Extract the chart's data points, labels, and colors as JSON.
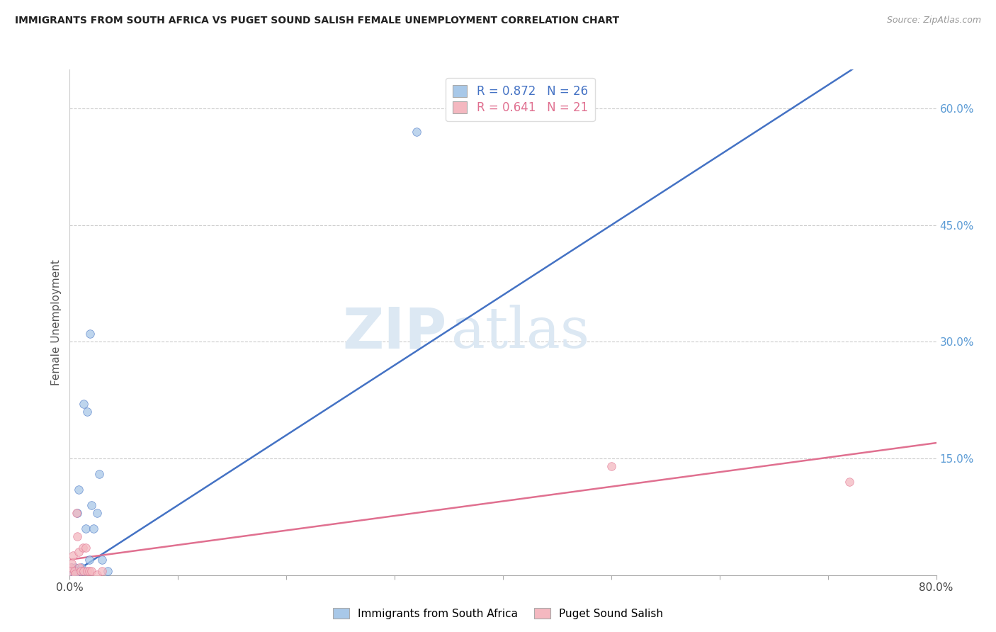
{
  "title": "IMMIGRANTS FROM SOUTH AFRICA VS PUGET SOUND SALISH FEMALE UNEMPLOYMENT CORRELATION CHART",
  "source": "Source: ZipAtlas.com",
  "ylabel": "Female Unemployment",
  "right_yticks": [
    "15.0%",
    "30.0%",
    "45.0%",
    "60.0%"
  ],
  "right_ytick_vals": [
    0.15,
    0.3,
    0.45,
    0.6
  ],
  "watermark_zip": "ZIP",
  "watermark_atlas": "atlas",
  "legend_label1": "Immigrants from South Africa",
  "legend_label2": "Puget Sound Salish",
  "r1": 0.872,
  "n1": 26,
  "r2": 0.641,
  "n2": 21,
  "color_blue": "#A8C8E8",
  "color_pink": "#F4B8C0",
  "line_color_blue": "#4472C4",
  "line_color_pink": "#E07090",
  "title_color": "#222222",
  "right_axis_color": "#5B9BD5",
  "xlim": [
    0,
    0.8
  ],
  "ylim": [
    0,
    0.65
  ],
  "blue_x": [
    0.0,
    0.001,
    0.002,
    0.003,
    0.004,
    0.005,
    0.005,
    0.006,
    0.007,
    0.008,
    0.009,
    0.01,
    0.011,
    0.012,
    0.013,
    0.015,
    0.016,
    0.018,
    0.019,
    0.02,
    0.022,
    0.025,
    0.027,
    0.03,
    0.035,
    0.32
  ],
  "blue_y": [
    0.003,
    0.005,
    0.01,
    0.001,
    0.005,
    0.0,
    0.01,
    0.005,
    0.08,
    0.11,
    0.005,
    0.007,
    0.01,
    0.005,
    0.22,
    0.06,
    0.21,
    0.02,
    0.31,
    0.09,
    0.06,
    0.08,
    0.13,
    0.02,
    0.005,
    0.57
  ],
  "pink_x": [
    0.0,
    0.001,
    0.002,
    0.003,
    0.004,
    0.005,
    0.006,
    0.007,
    0.008,
    0.009,
    0.01,
    0.012,
    0.013,
    0.015,
    0.016,
    0.018,
    0.02,
    0.025,
    0.03,
    0.5,
    0.72
  ],
  "pink_y": [
    0.005,
    0.01,
    0.015,
    0.025,
    0.005,
    0.002,
    0.08,
    0.05,
    0.03,
    0.01,
    0.005,
    0.035,
    0.005,
    0.035,
    0.005,
    0.005,
    0.005,
    0.001,
    0.005,
    0.14,
    0.12
  ],
  "blue_line_x": [
    0.0,
    0.8
  ],
  "blue_line_y": [
    0.0,
    0.72
  ],
  "pink_line_x": [
    0.0,
    0.8
  ],
  "pink_line_y": [
    0.02,
    0.17
  ]
}
